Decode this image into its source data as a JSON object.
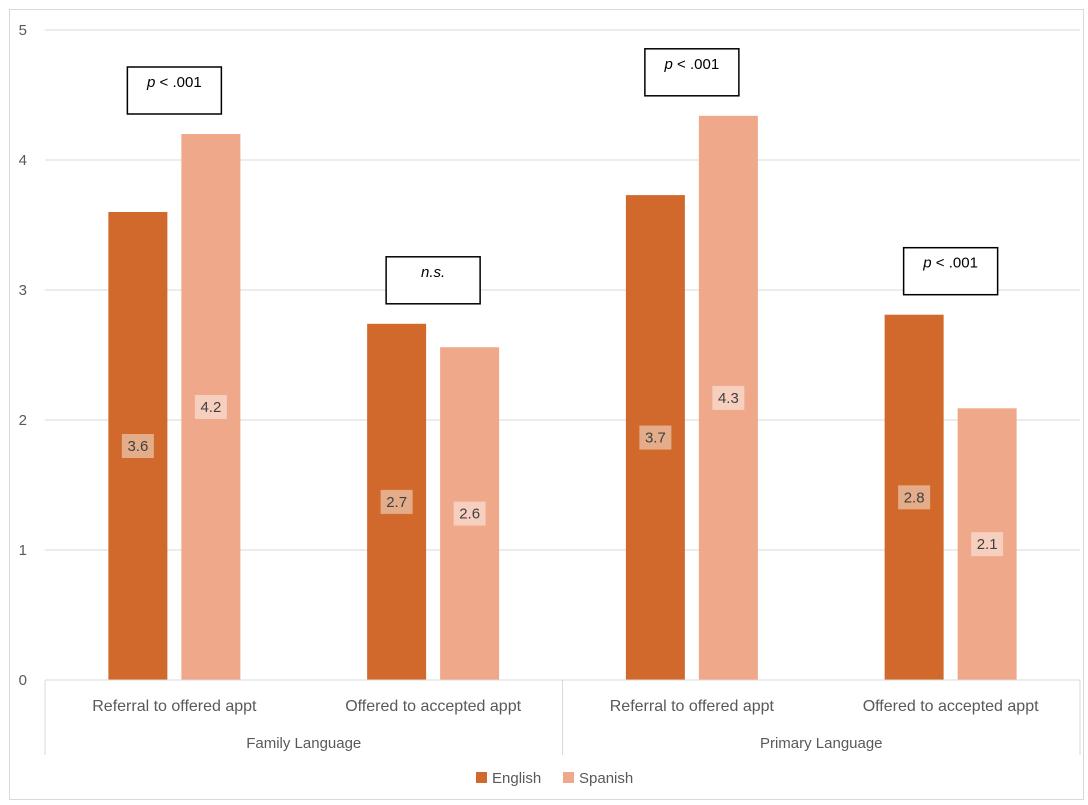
{
  "chart_data": {
    "type": "bar",
    "groups": [
      {
        "label": "Family Language",
        "categories": [
          "Referral to offered appt",
          "Offered to accepted appt"
        ]
      },
      {
        "label": "Primary Language",
        "categories": [
          "Referral to offered appt",
          "Offered to accepted appt"
        ]
      }
    ],
    "categories": [
      "Referral to offered appt",
      "Offered to accepted appt",
      "Referral to offered appt",
      "Offered to accepted appt"
    ],
    "series": [
      {
        "name": "English",
        "color": "#D0692B",
        "values": [
          3.6,
          2.74,
          3.73,
          2.81
        ],
        "labels": [
          "3.6",
          "2.7",
          "3.7",
          "2.8"
        ]
      },
      {
        "name": "Spanish",
        "color": "#F0A88A",
        "values": [
          4.2,
          2.56,
          4.34,
          2.09
        ],
        "labels": [
          "4.2",
          "2.6",
          "4.3",
          "2.1"
        ]
      }
    ],
    "significance": [
      {
        "category_index": 0,
        "prefix": "p",
        "text": " < .001"
      },
      {
        "category_index": 1,
        "prefix": "n.s.",
        "text": ""
      },
      {
        "category_index": 2,
        "prefix": "p",
        "text": " < .001"
      },
      {
        "category_index": 3,
        "prefix": "p",
        "text": " < .001"
      }
    ],
    "ylim": [
      0,
      5
    ],
    "yticks": [
      "0",
      "1",
      "2",
      "3",
      "4",
      "5"
    ],
    "grid": true,
    "legend_position": "bottom"
  }
}
